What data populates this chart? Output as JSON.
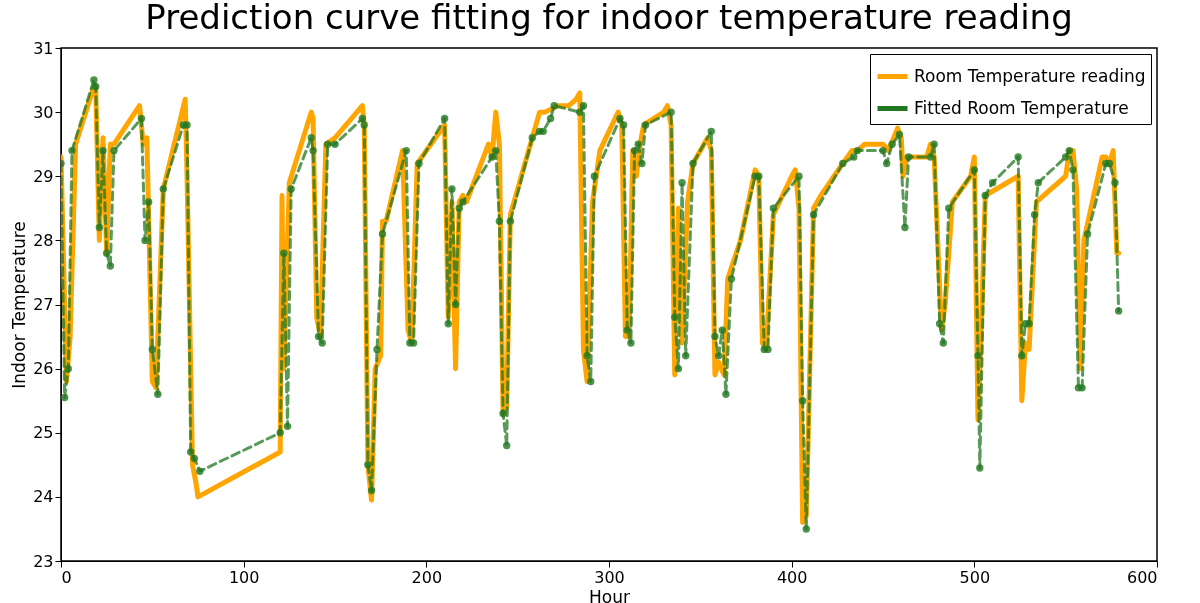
{
  "chart_data": {
    "type": "line",
    "title": "Prediction curve fitting for indoor temperature reading",
    "xlabel": "Hour",
    "ylabel": "Indoor Temperature",
    "xlim": [
      0,
      600
    ],
    "xticks": [
      0,
      100,
      200,
      300,
      400,
      500,
      600
    ],
    "ylim": [
      23,
      31
    ],
    "yticks": [
      23,
      24,
      25,
      26,
      27,
      28,
      29,
      30,
      31
    ],
    "grid": false,
    "legend": "top right",
    "series": [
      {
        "name": "Room Temperature reading",
        "color": "#ffa500",
        "marker": "none",
        "line_style": "solid",
        "x": [
          0,
          3,
          5,
          8,
          18,
          19,
          21,
          23,
          25,
          27,
          29,
          43,
          45,
          47,
          50,
          52,
          56,
          68,
          69,
          72,
          74,
          75,
          120,
          121,
          122,
          125,
          137,
          138,
          140,
          142,
          145,
          150,
          162,
          165,
          166,
          168,
          170,
          172,
          175,
          176,
          178,
          187,
          190,
          192,
          195,
          210,
          212,
          214,
          216,
          218,
          220,
          222,
          234,
          236,
          238,
          240,
          242,
          244,
          246,
          248,
          260,
          262,
          265,
          272,
          278,
          282,
          284,
          286,
          288,
          291,
          295,
          305,
          307,
          309,
          311,
          313,
          315,
          317,
          319,
          330,
          332,
          334,
          336,
          338,
          340,
          343,
          346,
          354,
          356,
          358,
          360,
          363,
          365,
          372,
          380,
          382,
          384,
          386,
          390,
          400,
          402,
          404,
          406,
          408,
          412,
          416,
          428,
          433,
          436,
          440,
          450,
          453,
          458,
          460,
          461,
          463,
          474,
          476,
          478,
          482,
          484,
          488,
          498,
          500,
          502,
          504,
          506,
          524,
          526,
          528,
          530,
          534,
          550,
          552,
          554,
          556,
          558,
          560,
          570,
          572,
          574,
          576,
          578,
          579
        ],
        "values": [
          29.3,
          25.8,
          26.5,
          29.5,
          30.4,
          30.4,
          28.0,
          29.6,
          27.8,
          29.5,
          29.5,
          30.1,
          29.5,
          29.6,
          25.8,
          25.7,
          28.8,
          30.2,
          29.0,
          24.5,
          24.2,
          24.0,
          24.7,
          28.7,
          26.0,
          28.9,
          30.0,
          29.9,
          26.8,
          26.5,
          29.5,
          29.6,
          30.0,
          30.1,
          29.8,
          24.5,
          23.95,
          26.0,
          26.2,
          28.3,
          28.3,
          29.4,
          26.6,
          26.4,
          29.2,
          29.8,
          26.8,
          28.6,
          26.0,
          28.6,
          28.7,
          28.6,
          29.5,
          29.3,
          30.0,
          29.5,
          25.3,
          25.4,
          28.4,
          28.6,
          29.8,
          30.0,
          30.0,
          30.1,
          30.1,
          30.2,
          30.3,
          26.3,
          25.8,
          28.6,
          29.4,
          30.0,
          29.8,
          26.5,
          26.5,
          29.4,
          29.0,
          29.5,
          29.8,
          30.0,
          30.1,
          29.8,
          25.9,
          28.5,
          26.4,
          28.6,
          29.2,
          29.6,
          29.4,
          25.9,
          26.1,
          25.9,
          27.4,
          28.0,
          29.1,
          29.0,
          26.4,
          26.3,
          28.4,
          29.0,
          29.1,
          28.5,
          23.6,
          23.7,
          28.5,
          28.7,
          29.2,
          29.4,
          29.4,
          29.5,
          29.5,
          29.4,
          29.75,
          29.6,
          29.0,
          29.3,
          29.3,
          29.5,
          29.3,
          26.6,
          27.0,
          28.6,
          29.0,
          29.3,
          25.2,
          26.8,
          28.7,
          29.0,
          25.5,
          26.4,
          26.3,
          28.6,
          29.0,
          29.4,
          29.4,
          28.8,
          26.0,
          28.0,
          29.3,
          29.3,
          29.2,
          29.4,
          27.8,
          27.8
        ]
      },
      {
        "name": "Fitted Room Temperature",
        "color": "#217821",
        "marker": "circle",
        "line_style": "dashed",
        "x": [
          0,
          2,
          4,
          6,
          18,
          19,
          21,
          23,
          25,
          27,
          29,
          44,
          46,
          48,
          50,
          53,
          56,
          67,
          69,
          71,
          73,
          76,
          120,
          122,
          124,
          126,
          137,
          138,
          141,
          143,
          146,
          150,
          165,
          166,
          168,
          170,
          173,
          176,
          189,
          191,
          193,
          196,
          210,
          212,
          214,
          216,
          218,
          220,
          236,
          238,
          240,
          242,
          244,
          246,
          258,
          262,
          264,
          268,
          270,
          284,
          286,
          288,
          290,
          292,
          306,
          308,
          310,
          312,
          314,
          316,
          318,
          320,
          334,
          336,
          338,
          340,
          342,
          346,
          356,
          358,
          360,
          362,
          364,
          367,
          380,
          382,
          385,
          387,
          390,
          404,
          406,
          408,
          412,
          428,
          434,
          436,
          450,
          452,
          455,
          459,
          462,
          464,
          476,
          478,
          481,
          483,
          486,
          500,
          502,
          503,
          506,
          510,
          524,
          526,
          528,
          530,
          533,
          535,
          550,
          552,
          554,
          557,
          559,
          562,
          572,
          574,
          577,
          579
        ],
        "values": [
          29.2,
          25.55,
          26.0,
          29.4,
          30.5,
          30.4,
          28.2,
          29.4,
          27.8,
          27.6,
          29.4,
          29.9,
          28.0,
          28.6,
          26.3,
          25.6,
          28.8,
          29.8,
          29.8,
          24.7,
          24.6,
          24.4,
          25.0,
          27.8,
          25.1,
          28.8,
          29.6,
          29.4,
          26.5,
          26.4,
          29.5,
          29.5,
          29.9,
          29.8,
          24.5,
          24.1,
          26.3,
          28.1,
          29.4,
          26.4,
          26.4,
          29.2,
          29.9,
          26.7,
          28.8,
          27.0,
          28.5,
          28.6,
          29.3,
          29.4,
          28.3,
          25.3,
          24.8,
          28.3,
          29.6,
          29.7,
          29.7,
          29.9,
          30.1,
          30.0,
          30.1,
          26.2,
          25.8,
          29.0,
          29.9,
          29.8,
          26.6,
          26.4,
          29.4,
          29.5,
          29.2,
          29.8,
          30.0,
          26.8,
          26.0,
          28.9,
          26.2,
          29.2,
          29.7,
          26.5,
          26.2,
          26.6,
          25.6,
          27.4,
          29.0,
          29.0,
          26.3,
          26.3,
          28.5,
          29.0,
          25.5,
          23.5,
          28.4,
          29.2,
          29.3,
          29.4,
          29.4,
          29.2,
          29.5,
          29.65,
          28.2,
          29.3,
          29.3,
          29.5,
          26.7,
          26.4,
          28.5,
          29.1,
          26.2,
          24.45,
          28.7,
          28.9,
          29.3,
          26.2,
          26.7,
          26.7,
          28.4,
          28.9,
          29.3,
          29.4,
          29.1,
          25.7,
          25.7,
          28.1,
          29.2,
          29.2,
          28.9,
          26.9
        ]
      }
    ]
  }
}
